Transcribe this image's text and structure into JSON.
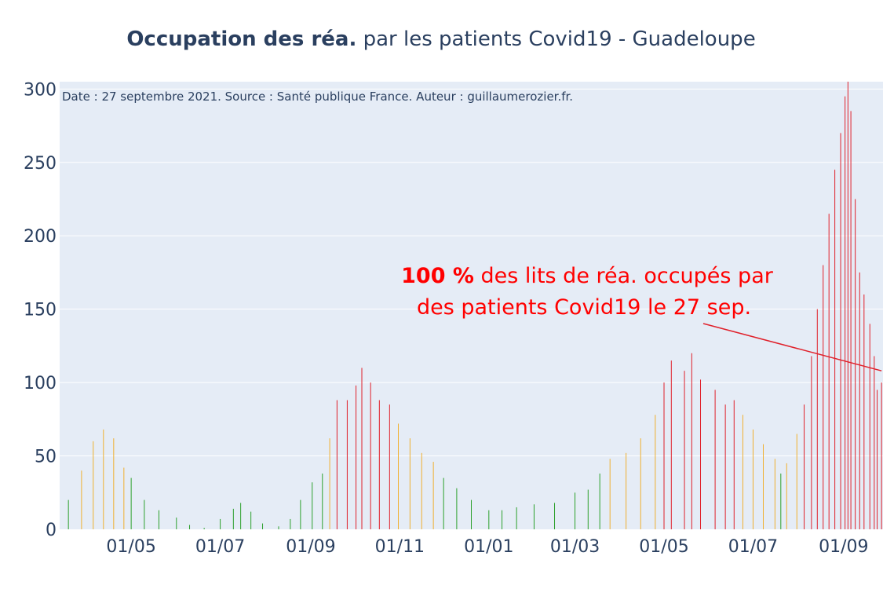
{
  "chart_data": {
    "type": "bar",
    "title_bold": "Occupation des réa.",
    "title_rest": " par les patients Covid19 - Guadeloupe",
    "source_note": "Date : 27 septembre 2021. Source : Santé publique France. Auteur : guillaumerozier.fr.",
    "annotation": {
      "percent": "100  %",
      "line1_rest": " des lits de réa. occupés par",
      "line2": "des patients Covid19 le 27 sep.",
      "pointer_date": "2021-09-27",
      "pointer_value": 108
    },
    "x_range": [
      "2020-03-13",
      "2021-09-28"
    ],
    "ylim": [
      0,
      305
    ],
    "y_ticks": [
      0,
      50,
      100,
      150,
      200,
      250,
      300
    ],
    "x_ticks": [
      {
        "date": "2020-05-01",
        "label": "01/05"
      },
      {
        "date": "2020-07-01",
        "label": "01/07"
      },
      {
        "date": "2020-09-01",
        "label": "01/09"
      },
      {
        "date": "2020-11-01",
        "label": "01/11"
      },
      {
        "date": "2021-01-01",
        "label": "01/01"
      },
      {
        "date": "2021-03-01",
        "label": "01/03"
      },
      {
        "date": "2021-05-01",
        "label": "01/05"
      },
      {
        "date": "2021-07-01",
        "label": "01/07"
      },
      {
        "date": "2021-09-01",
        "label": "01/09"
      }
    ],
    "colors": {
      "green": "#2ca02c",
      "orange": "#f0b030",
      "red": "#e0202a",
      "bg": "#e5ecf6",
      "grid": "#ffffff",
      "axis": "#2a3f5f",
      "annotation": "#ff0000"
    },
    "series": [
      {
        "date": "2020-03-19",
        "value": 20,
        "level": "green"
      },
      {
        "date": "2020-03-28",
        "value": 40,
        "level": "orange"
      },
      {
        "date": "2020-04-05",
        "value": 60,
        "level": "orange"
      },
      {
        "date": "2020-04-12",
        "value": 68,
        "level": "orange"
      },
      {
        "date": "2020-04-19",
        "value": 62,
        "level": "orange"
      },
      {
        "date": "2020-04-26",
        "value": 42,
        "level": "orange"
      },
      {
        "date": "2020-05-01",
        "value": 35,
        "level": "green"
      },
      {
        "date": "2020-05-10",
        "value": 20,
        "level": "green"
      },
      {
        "date": "2020-05-20",
        "value": 13,
        "level": "green"
      },
      {
        "date": "2020-06-01",
        "value": 8,
        "level": "green"
      },
      {
        "date": "2020-06-10",
        "value": 3,
        "level": "green"
      },
      {
        "date": "2020-06-20",
        "value": 1,
        "level": "green"
      },
      {
        "date": "2020-07-01",
        "value": 7,
        "level": "green"
      },
      {
        "date": "2020-07-10",
        "value": 14,
        "level": "green"
      },
      {
        "date": "2020-07-15",
        "value": 18,
        "level": "green"
      },
      {
        "date": "2020-07-22",
        "value": 12,
        "level": "green"
      },
      {
        "date": "2020-07-30",
        "value": 4,
        "level": "green"
      },
      {
        "date": "2020-08-10",
        "value": 2,
        "level": "green"
      },
      {
        "date": "2020-08-18",
        "value": 7,
        "level": "green"
      },
      {
        "date": "2020-08-25",
        "value": 20,
        "level": "green"
      },
      {
        "date": "2020-09-02",
        "value": 32,
        "level": "green"
      },
      {
        "date": "2020-09-09",
        "value": 38,
        "level": "green"
      },
      {
        "date": "2020-09-14",
        "value": 62,
        "level": "orange"
      },
      {
        "date": "2020-09-19",
        "value": 88,
        "level": "red"
      },
      {
        "date": "2020-09-26",
        "value": 88,
        "level": "red"
      },
      {
        "date": "2020-10-02",
        "value": 98,
        "level": "red"
      },
      {
        "date": "2020-10-06",
        "value": 110,
        "level": "red"
      },
      {
        "date": "2020-10-12",
        "value": 100,
        "level": "red"
      },
      {
        "date": "2020-10-18",
        "value": 88,
        "level": "red"
      },
      {
        "date": "2020-10-25",
        "value": 85,
        "level": "red"
      },
      {
        "date": "2020-10-31",
        "value": 72,
        "level": "orange"
      },
      {
        "date": "2020-11-08",
        "value": 62,
        "level": "orange"
      },
      {
        "date": "2020-11-16",
        "value": 52,
        "level": "orange"
      },
      {
        "date": "2020-11-24",
        "value": 46,
        "level": "orange"
      },
      {
        "date": "2020-12-01",
        "value": 35,
        "level": "green"
      },
      {
        "date": "2020-12-10",
        "value": 28,
        "level": "green"
      },
      {
        "date": "2020-12-20",
        "value": 20,
        "level": "green"
      },
      {
        "date": "2021-01-01",
        "value": 13,
        "level": "green"
      },
      {
        "date": "2021-01-10",
        "value": 13,
        "level": "green"
      },
      {
        "date": "2021-01-20",
        "value": 15,
        "level": "green"
      },
      {
        "date": "2021-02-01",
        "value": 17,
        "level": "green"
      },
      {
        "date": "2021-02-15",
        "value": 18,
        "level": "green"
      },
      {
        "date": "2021-03-01",
        "value": 25,
        "level": "green"
      },
      {
        "date": "2021-03-10",
        "value": 27,
        "level": "green"
      },
      {
        "date": "2021-03-18",
        "value": 38,
        "level": "green"
      },
      {
        "date": "2021-03-25",
        "value": 48,
        "level": "orange"
      },
      {
        "date": "2021-04-05",
        "value": 52,
        "level": "orange"
      },
      {
        "date": "2021-04-15",
        "value": 62,
        "level": "orange"
      },
      {
        "date": "2021-04-25",
        "value": 78,
        "level": "orange"
      },
      {
        "date": "2021-05-01",
        "value": 100,
        "level": "red"
      },
      {
        "date": "2021-05-06",
        "value": 115,
        "level": "red"
      },
      {
        "date": "2021-05-15",
        "value": 108,
        "level": "red"
      },
      {
        "date": "2021-05-20",
        "value": 120,
        "level": "red"
      },
      {
        "date": "2021-05-26",
        "value": 102,
        "level": "red"
      },
      {
        "date": "2021-06-05",
        "value": 95,
        "level": "red"
      },
      {
        "date": "2021-06-12",
        "value": 85,
        "level": "red"
      },
      {
        "date": "2021-06-18",
        "value": 88,
        "level": "red"
      },
      {
        "date": "2021-06-24",
        "value": 78,
        "level": "orange"
      },
      {
        "date": "2021-07-01",
        "value": 68,
        "level": "orange"
      },
      {
        "date": "2021-07-08",
        "value": 58,
        "level": "orange"
      },
      {
        "date": "2021-07-16",
        "value": 48,
        "level": "orange"
      },
      {
        "date": "2021-07-20",
        "value": 38,
        "level": "green"
      },
      {
        "date": "2021-07-24",
        "value": 45,
        "level": "orange"
      },
      {
        "date": "2021-07-31",
        "value": 65,
        "level": "orange"
      },
      {
        "date": "2021-08-05",
        "value": 85,
        "level": "red"
      },
      {
        "date": "2021-08-10",
        "value": 118,
        "level": "red"
      },
      {
        "date": "2021-08-14",
        "value": 150,
        "level": "red"
      },
      {
        "date": "2021-08-18",
        "value": 180,
        "level": "red"
      },
      {
        "date": "2021-08-22",
        "value": 215,
        "level": "red"
      },
      {
        "date": "2021-08-26",
        "value": 245,
        "level": "red"
      },
      {
        "date": "2021-08-30",
        "value": 270,
        "level": "red"
      },
      {
        "date": "2021-09-02",
        "value": 295,
        "level": "red"
      },
      {
        "date": "2021-09-04",
        "value": 305,
        "level": "red"
      },
      {
        "date": "2021-09-06",
        "value": 285,
        "level": "red"
      },
      {
        "date": "2021-09-09",
        "value": 225,
        "level": "red"
      },
      {
        "date": "2021-09-12",
        "value": 175,
        "level": "red"
      },
      {
        "date": "2021-09-15",
        "value": 160,
        "level": "red"
      },
      {
        "date": "2021-09-19",
        "value": 140,
        "level": "red"
      },
      {
        "date": "2021-09-22",
        "value": 118,
        "level": "red"
      },
      {
        "date": "2021-09-24",
        "value": 95,
        "level": "red"
      },
      {
        "date": "2021-09-27",
        "value": 100,
        "level": "red"
      }
    ]
  }
}
